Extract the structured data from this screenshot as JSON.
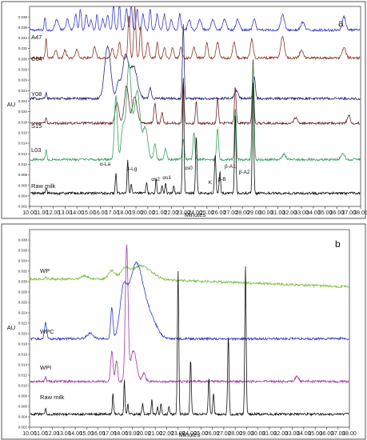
{
  "chart_data": [
    {
      "type": "line",
      "panel_label": "a",
      "xlabel": "Minutes",
      "ylabel": "AU",
      "xlim": [
        10.0,
        38.0
      ],
      "x_ticks": [
        "10.00",
        "11.00",
        "12.00",
        "13.00",
        "14.00",
        "15.00",
        "16.00",
        "17.00",
        "18.00",
        "19.00",
        "20.00",
        "21.00",
        "22.00",
        "23.00",
        "24.00",
        "25.00",
        "26.00",
        "27.00",
        "28.00",
        "29.00",
        "30.00",
        "31.00",
        "32.00",
        "33.00",
        "34.00",
        "35.00",
        "36.00",
        "37.00",
        "38.00"
      ],
      "ylim": [
        0.002,
        0.04
      ],
      "y_ticks": [
        "0.002",
        "0.004",
        "0.006",
        "0.008",
        "0.010",
        "0.012",
        "0.014",
        "0.016",
        "0.018",
        "0.020",
        "0.022",
        "0.024",
        "0.026",
        "0.028",
        "0.030",
        "0.032",
        "0.034",
        "0.036",
        "0.038"
      ],
      "series": [
        {
          "name": "A47",
          "color": "#3a3fbf",
          "baseline": 0.0355,
          "peaks": [
            [
              11.3,
              0.0025,
              0.06
            ],
            [
              12.3,
              0.002,
              0.15
            ],
            [
              13.2,
              0.002,
              0.12
            ],
            [
              13.9,
              0.003,
              0.1
            ],
            [
              14.3,
              0.004,
              0.08
            ],
            [
              14.8,
              0.003,
              0.1
            ],
            [
              15.2,
              0.002,
              0.1
            ],
            [
              15.7,
              0.003,
              0.08
            ],
            [
              16.2,
              0.002,
              0.1
            ],
            [
              16.6,
              0.003,
              0.1
            ],
            [
              17.1,
              0.005,
              0.08
            ],
            [
              17.6,
              0.005,
              0.08
            ],
            [
              18.2,
              0.004,
              0.1
            ],
            [
              18.6,
              0.005,
              0.07
            ],
            [
              19.1,
              0.004,
              0.08
            ],
            [
              19.6,
              0.003,
              0.1
            ],
            [
              20.2,
              0.004,
              0.08
            ],
            [
              20.8,
              0.003,
              0.1
            ],
            [
              21.4,
              0.003,
              0.1
            ],
            [
              22.0,
              0.002,
              0.1
            ],
            [
              22.7,
              0.003,
              0.1
            ],
            [
              23.5,
              0.002,
              0.12
            ],
            [
              24.4,
              0.002,
              0.15
            ],
            [
              25.5,
              0.002,
              0.15
            ],
            [
              26.5,
              0.002,
              0.15
            ],
            [
              27.6,
              0.002,
              0.15
            ],
            [
              29.0,
              0.002,
              0.12
            ],
            [
              31.4,
              0.003,
              0.15
            ],
            [
              33.1,
              0.0015,
              0.15
            ],
            [
              36.6,
              0.0025,
              0.15
            ]
          ]
        },
        {
          "name": "C64",
          "color": "#8b3a2a",
          "baseline": 0.0302,
          "peaks": [
            [
              11.4,
              0.004,
              0.06
            ],
            [
              12.2,
              0.0015,
              0.1
            ],
            [
              13.0,
              0.0015,
              0.1
            ],
            [
              14.0,
              0.0015,
              0.12
            ],
            [
              15.5,
              0.002,
              0.12
            ],
            [
              17.0,
              0.002,
              0.1
            ],
            [
              17.6,
              0.003,
              0.1
            ],
            [
              18.4,
              0.008,
              0.08
            ],
            [
              18.9,
              0.01,
              0.08
            ],
            [
              19.4,
              0.006,
              0.08
            ],
            [
              20.0,
              0.003,
              0.1
            ],
            [
              20.8,
              0.003,
              0.08
            ],
            [
              21.4,
              0.002,
              0.1
            ],
            [
              22.1,
              0.002,
              0.1
            ],
            [
              22.8,
              0.002,
              0.1
            ],
            [
              23.9,
              0.002,
              0.12
            ],
            [
              25.0,
              0.003,
              0.1
            ],
            [
              25.9,
              0.003,
              0.12
            ],
            [
              27.3,
              0.003,
              0.12
            ],
            [
              28.8,
              0.0035,
              0.12
            ],
            [
              31.4,
              0.004,
              0.15
            ],
            [
              33.0,
              0.0015,
              0.15
            ],
            [
              36.6,
              0.002,
              0.15
            ]
          ]
        },
        {
          "name": "Y08",
          "color": "#2b2b7a",
          "baseline": 0.0225,
          "peaks": [
            [
              11.4,
              0.001,
              0.06
            ],
            [
              16.6,
              0.01,
              0.25
            ],
            [
              17.5,
              0.003,
              0.15
            ],
            [
              18.1,
              0.008,
              0.25
            ],
            [
              18.8,
              0.006,
              0.3
            ],
            [
              20.2,
              0.002,
              0.1
            ],
            [
              23.0,
              0.014,
              0.07
            ],
            [
              27.5,
              0.0015,
              0.15
            ],
            [
              29.0,
              0.004,
              0.1
            ]
          ]
        },
        {
          "name": "S15",
          "color": "#6a2a2a",
          "baseline": 0.0178,
          "peaks": [
            [
              11.4,
              0.001,
              0.06
            ],
            [
              17.4,
              0.004,
              0.15
            ],
            [
              18.2,
              0.007,
              0.18
            ],
            [
              18.9,
              0.005,
              0.2
            ],
            [
              20.6,
              0.004,
              0.08
            ],
            [
              21.2,
              0.002,
              0.08
            ],
            [
              23.0,
              0.008,
              0.07
            ],
            [
              24.1,
              0.004,
              0.07
            ],
            [
              25.9,
              0.005,
              0.07
            ],
            [
              27.4,
              0.007,
              0.07
            ],
            [
              28.9,
              0.012,
              0.07
            ],
            [
              32.5,
              0.001,
              0.15
            ],
            [
              37.0,
              0.0015,
              0.12
            ]
          ]
        },
        {
          "name": "L03",
          "color": "#3aa060",
          "baseline": 0.0109,
          "peaks": [
            [
              11.4,
              0.002,
              0.06
            ],
            [
              17.3,
              0.012,
              0.12
            ],
            [
              17.9,
              0.006,
              0.15
            ],
            [
              18.4,
              0.018,
              0.2
            ],
            [
              19.1,
              0.013,
              0.25
            ],
            [
              19.8,
              0.006,
              0.2
            ],
            [
              20.6,
              0.003,
              0.1
            ],
            [
              21.5,
              0.002,
              0.1
            ],
            [
              23.0,
              0.004,
              0.08
            ],
            [
              23.9,
              0.005,
              0.08
            ],
            [
              25.9,
              0.006,
              0.08
            ],
            [
              27.4,
              0.01,
              0.07
            ],
            [
              28.9,
              0.018,
              0.08
            ],
            [
              31.5,
              0.001,
              0.15
            ],
            [
              36.5,
              0.0012,
              0.15
            ]
          ]
        },
        {
          "name": "Raw milk",
          "color": "#111111",
          "baseline": 0.0045,
          "peaks": [
            [
              11.4,
              0.0012,
              0.05
            ],
            [
              17.3,
              0.004,
              0.05
            ],
            [
              18.3,
              0.0065,
              0.05
            ],
            [
              18.6,
              0.002,
              0.05
            ],
            [
              19.9,
              0.002,
              0.06
            ],
            [
              20.7,
              0.003,
              0.05
            ],
            [
              21.2,
              0.0015,
              0.05
            ],
            [
              21.5,
              0.002,
              0.05
            ],
            [
              22.2,
              0.0015,
              0.05
            ],
            [
              23.0,
              0.022,
              0.06
            ],
            [
              24.1,
              0.011,
              0.06
            ],
            [
              25.7,
              0.0075,
              0.06
            ],
            [
              26.1,
              0.004,
              0.06
            ],
            [
              27.4,
              0.015,
              0.06
            ],
            [
              28.9,
              0.021,
              0.06
            ]
          ]
        }
      ],
      "annotations": [
        {
          "text": "α-La",
          "x": 17.3
        },
        {
          "text": "β-Lg",
          "x": 18.4
        },
        {
          "text": "αs2",
          "x": 20.7
        },
        {
          "text": "αs1",
          "x": 22.2
        },
        {
          "text": "αs0",
          "x": 23.2
        },
        {
          "text": "K",
          "x": 25.6
        },
        {
          "text": "β-B",
          "x": 26.2
        },
        {
          "text": "β-A1",
          "x": 26.5
        },
        {
          "text": "β-A2",
          "x": 28.1
        }
      ]
    },
    {
      "type": "line",
      "panel_label": "b",
      "xlabel": "Minutes",
      "ylabel": "AU",
      "xlim": [
        10.0,
        38.0
      ],
      "x_ticks": [
        "10.00",
        "11.00",
        "12.00",
        "13.00",
        "14.00",
        "15.00",
        "16.00",
        "17.00",
        "18.00",
        "19.00",
        "20.00",
        "21.00",
        "22.00",
        "23.00",
        "24.00",
        "25.00",
        "26.00",
        "27.00",
        "28.00",
        "29.00",
        "30.00",
        "31.00",
        "32.00",
        "33.00",
        "34.00",
        "35.00",
        "36.00",
        "37.00",
        "38.00"
      ],
      "ylim": [
        0.002,
        0.04
      ],
      "y_ticks": [
        "0.002",
        "0.004",
        "0.006",
        "0.008",
        "0.010",
        "0.012",
        "0.014",
        "0.016",
        "0.018",
        "0.020",
        "0.022",
        "0.024",
        "0.026",
        "0.028",
        "0.030",
        "0.032",
        "0.034",
        "0.036",
        "0.038"
      ],
      "series": [
        {
          "name": "WP",
          "color": "#7ac043",
          "baseline": 0.0305,
          "decay": 0.0015,
          "peaks": [
            [
              11.4,
              0.0005,
              0.06
            ],
            [
              14.8,
              0.0006,
              0.3
            ],
            [
              17.2,
              0.0015,
              0.3
            ],
            [
              18.4,
              0.002,
              0.4
            ],
            [
              19.7,
              0.0025,
              0.6
            ],
            [
              20.8,
              0.0008,
              0.5
            ]
          ]
        },
        {
          "name": "WPC",
          "color": "#2e3fbf",
          "baseline": 0.019,
          "peaks": [
            [
              11.4,
              0.003,
              0.1
            ],
            [
              15.3,
              0.001,
              0.3
            ],
            [
              17.2,
              0.006,
              0.1
            ],
            [
              18.2,
              0.008,
              0.3
            ],
            [
              19.3,
              0.014,
              0.6
            ],
            [
              20.5,
              0.004,
              0.6
            ]
          ]
        },
        {
          "name": "WPI",
          "color": "#a03aaa",
          "baseline": 0.0108,
          "peaks": [
            [
              11.4,
              0.001,
              0.05
            ],
            [
              17.2,
              0.006,
              0.1
            ],
            [
              17.6,
              0.004,
              0.1
            ],
            [
              18.5,
              0.026,
              0.12
            ],
            [
              19.1,
              0.006,
              0.25
            ],
            [
              20.0,
              0.0015,
              0.15
            ],
            [
              33.4,
              0.001,
              0.15
            ]
          ]
        },
        {
          "name": "Raw milk",
          "color": "#111111",
          "baseline": 0.0045,
          "peaks": [
            [
              11.4,
              0.0012,
              0.05
            ],
            [
              17.3,
              0.004,
              0.05
            ],
            [
              18.3,
              0.0065,
              0.05
            ],
            [
              18.6,
              0.002,
              0.05
            ],
            [
              19.9,
              0.002,
              0.06
            ],
            [
              20.7,
              0.003,
              0.05
            ],
            [
              21.2,
              0.0015,
              0.05
            ],
            [
              21.5,
              0.002,
              0.05
            ],
            [
              22.2,
              0.0015,
              0.05
            ],
            [
              23.0,
              0.0275,
              0.06
            ],
            [
              24.1,
              0.0105,
              0.06
            ],
            [
              25.7,
              0.007,
              0.06
            ],
            [
              26.1,
              0.004,
              0.06
            ],
            [
              27.4,
              0.015,
              0.06
            ],
            [
              28.9,
              0.0285,
              0.06
            ]
          ]
        }
      ]
    }
  ]
}
